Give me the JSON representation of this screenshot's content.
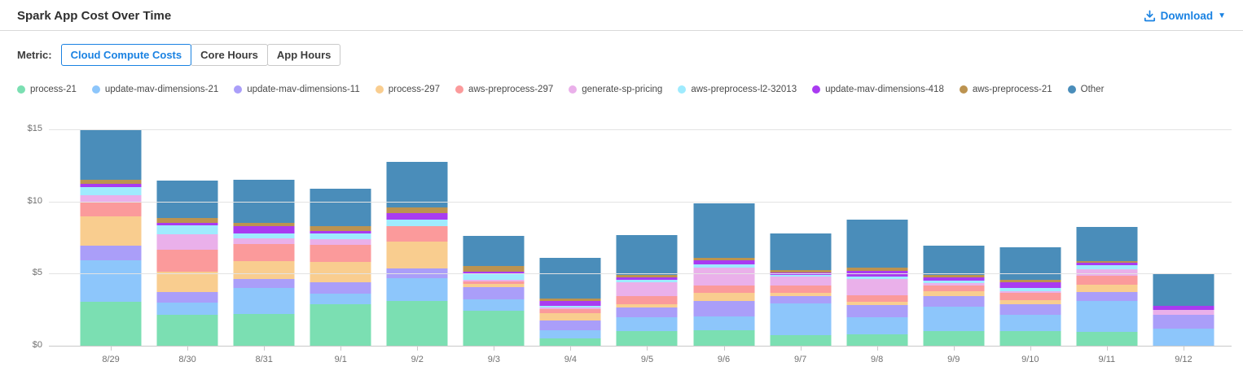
{
  "header": {
    "title": "Spark App Cost Over Time",
    "download_label": "Download"
  },
  "metric": {
    "label": "Metric:",
    "options": [
      "Cloud Compute Costs",
      "Core Hours",
      "App Hours"
    ],
    "selected": "Cloud Compute Costs"
  },
  "colors": {
    "accent_blue": "#1a82e2",
    "gridline": "#e3e3e3",
    "axis": "#c9c9c9"
  },
  "chart_data": {
    "type": "bar",
    "stacked": true,
    "title": "Spark App Cost Over Time",
    "xlabel": "",
    "ylabel": "",
    "ylim": [
      0,
      15
    ],
    "y_tick_labels": [
      "$0",
      "$5",
      "$10",
      "$15"
    ],
    "grid": true,
    "legend_position": "top",
    "categories": [
      "8/29",
      "8/30",
      "8/31",
      "9/1",
      "9/2",
      "9/3",
      "9/4",
      "9/5",
      "9/6",
      "9/7",
      "9/8",
      "9/9",
      "9/10",
      "9/11",
      "9/12"
    ],
    "series": [
      {
        "name": "process-21",
        "color": "#7bdfb2",
        "values": [
          3.05,
          2.15,
          2.2,
          2.9,
          3.1,
          2.45,
          0.5,
          1.0,
          1.05,
          0.75,
          0.8,
          1.0,
          1.0,
          0.95,
          0
        ]
      },
      {
        "name": "update-mav-dimensions-21",
        "color": "#8dc6fb",
        "values": [
          2.9,
          0.85,
          1.8,
          0.7,
          1.6,
          0.75,
          0.55,
          0.95,
          1.0,
          2.2,
          1.2,
          1.7,
          1.13,
          2.15,
          1.17
        ]
      },
      {
        "name": "update-mav-dimensions-11",
        "color": "#aa9ef9",
        "values": [
          1.0,
          0.7,
          0.62,
          0.8,
          0.65,
          0.85,
          0.68,
          0.7,
          1.05,
          0.5,
          0.8,
          0.75,
          0.75,
          0.6,
          0.98
        ]
      },
      {
        "name": "process-297",
        "color": "#f9cd8f",
        "values": [
          2.0,
          1.45,
          1.26,
          1.4,
          1.85,
          0.24,
          0.5,
          0.23,
          0.56,
          0.2,
          0.24,
          0.34,
          0.28,
          0.55,
          0
        ]
      },
      {
        "name": "aws-preprocess-297",
        "color": "#fb9a9b",
        "values": [
          1.0,
          1.5,
          1.17,
          1.2,
          1.1,
          0.19,
          0.33,
          0.56,
          0.49,
          0.5,
          0.47,
          0.41,
          0.52,
          0.6,
          0
        ]
      },
      {
        "name": "generate-sp-pricing",
        "color": "#eab0ea",
        "values": [
          0.5,
          1.1,
          0.38,
          0.38,
          0,
          0.1,
          0.1,
          0.94,
          1.28,
          0.65,
          1.09,
          0.13,
          0.1,
          0.45,
          0.34
        ]
      },
      {
        "name": "aws-preprocess-l2-32013",
        "color": "#9febfe",
        "values": [
          0.55,
          0.6,
          0.34,
          0.38,
          0.45,
          0.4,
          0.12,
          0.2,
          0.19,
          0.12,
          0.17,
          0.21,
          0.23,
          0.28,
          0
        ]
      },
      {
        "name": "update-mav-dimensions-418",
        "color": "#a93bf1",
        "values": [
          0.22,
          0.15,
          0.53,
          0.2,
          0.42,
          0.13,
          0.33,
          0.15,
          0.3,
          0.15,
          0.4,
          0.19,
          0.41,
          0.15,
          0.3
        ]
      },
      {
        "name": "aws-preprocess-21",
        "color": "#bc9350",
        "values": [
          0.3,
          0.38,
          0.23,
          0.35,
          0.42,
          0.43,
          0.15,
          0.17,
          0.15,
          0.17,
          0.23,
          0.19,
          0.17,
          0.13,
          0
        ]
      },
      {
        "name": "Other",
        "color": "#4a8dba",
        "values": [
          3.5,
          2.6,
          2.97,
          2.6,
          3.15,
          2.06,
          2.85,
          2.8,
          3.8,
          2.55,
          3.34,
          2.03,
          2.24,
          2.4,
          2.26
        ]
      }
    ]
  }
}
